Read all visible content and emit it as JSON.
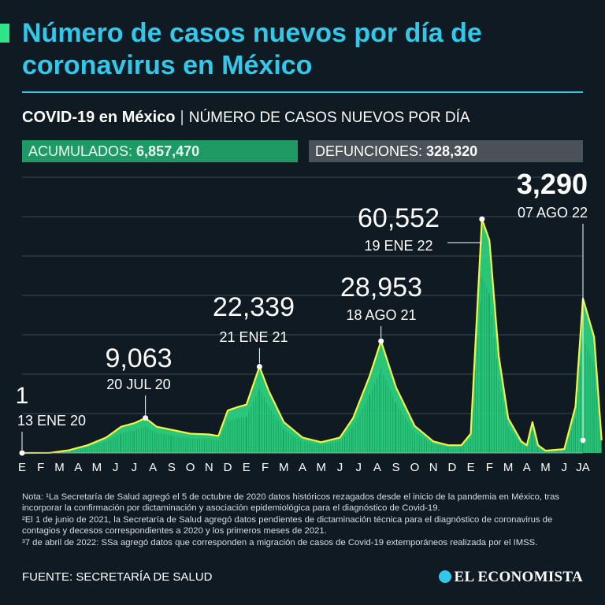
{
  "header": {
    "title": "Número de casos nuevos por día de coronavirus en México",
    "subtitle_bold": "COVID-19 en México",
    "subtitle_sep": "|",
    "subtitle_desc": "NÚMERO DE CASOS NUEVOS POR DÍA"
  },
  "stats": {
    "acumulados_label": "ACUMULADOS:",
    "acumulados_value": "6,857,470",
    "defunciones_label": "DEFUNCIONES:",
    "defunciones_value": "328,320"
  },
  "chart_data": {
    "type": "area",
    "title": "",
    "xlabel": "",
    "ylabel": "",
    "ylim": [
      0,
      72000
    ],
    "grid": true,
    "month_labels": [
      "E",
      "F",
      "M",
      "A",
      "M",
      "J",
      "J",
      "A",
      "S",
      "O",
      "N",
      "D",
      "E",
      "F",
      "M",
      "A",
      "M",
      "J",
      "J",
      "A",
      "S",
      "O",
      "N",
      "D",
      "E",
      "F",
      "M",
      "A",
      "M",
      "J",
      "JA"
    ],
    "series": [
      {
        "x_month": [
          0,
          1.5,
          2.5,
          3.5,
          4.5,
          5.3,
          6.0,
          6.6,
          7.2,
          8.0,
          9.0,
          10.0,
          10.5,
          11.0,
          11.6,
          12.0,
          12.7,
          13.2,
          14.0,
          15.0,
          16.0,
          17.0,
          17.7,
          18.6,
          19.2,
          20.0,
          21.0,
          22.0,
          22.8,
          23.5,
          24.0,
          24.6,
          25.0,
          25.5,
          26.0,
          26.7,
          27.0,
          27.3,
          27.6,
          28.0,
          29.0,
          29.6,
          30.0,
          30.6,
          31.0
        ],
        "values": [
          1,
          50,
          700,
          2000,
          4000,
          6800,
          7700,
          9063,
          6800,
          6000,
          5000,
          4800,
          4400,
          11000,
          12000,
          12500,
          22339,
          16000,
          8000,
          4000,
          2800,
          4000,
          9000,
          20000,
          28953,
          17000,
          7000,
          3000,
          2000,
          2000,
          5000,
          60552,
          55000,
          25000,
          9000,
          3000,
          2000,
          8000,
          2000,
          600,
          1000,
          12000,
          40000,
          30000,
          3290
        ]
      }
    ],
    "annotations": [
      {
        "value": "1",
        "date": "13 ENE 20",
        "x_month": 0,
        "y": 1
      },
      {
        "value": "9,063",
        "date": "20 JUL 20",
        "x_month": 6.6,
        "y": 9063
      },
      {
        "value": "22,339",
        "date": "21 ENE 21",
        "x_month": 12.7,
        "y": 22339
      },
      {
        "value": "28,953",
        "date": "18 AGO 21",
        "x_month": 19.2,
        "y": 28953
      },
      {
        "value": "60,552",
        "date": "19 ENE 22",
        "x_month": 24.6,
        "y": 60552
      },
      {
        "value": "3,290",
        "date": "07 AGO 22",
        "x_month": 31.0,
        "y": 3290
      }
    ],
    "colors": {
      "fill": "#2ee58a",
      "line": "#f5f542",
      "grid": "#3d4a54",
      "text": "#ffffff"
    }
  },
  "notes": {
    "n1": "Nota: ¹La Secretaría de Salud agregó el 5 de octubre de 2020 datos históricos rezagados desde el inicio de la pandemia en México, tras incorporar la confirmación por dictaminación y asociación epidemiológica para el diagnóstico de Covid-19.",
    "n2": "²El 1 de junio de 2021, la Secretaría de Salud agregó datos pendientes de dictaminación técnica para el diagnóstico de coronavirus de contagios y decesos correspondientes a 2020 y los primeros meses de 2021.",
    "n3": "³7 de abril de 2022: SSa agregó datos que corresponden a migración de casos de Covid-19 extemporáneos realizada por el IMSS."
  },
  "footer": {
    "source": "FUENTE: SECRETARÍA DE SALUD",
    "brand": "EL ECONOMISTA"
  }
}
